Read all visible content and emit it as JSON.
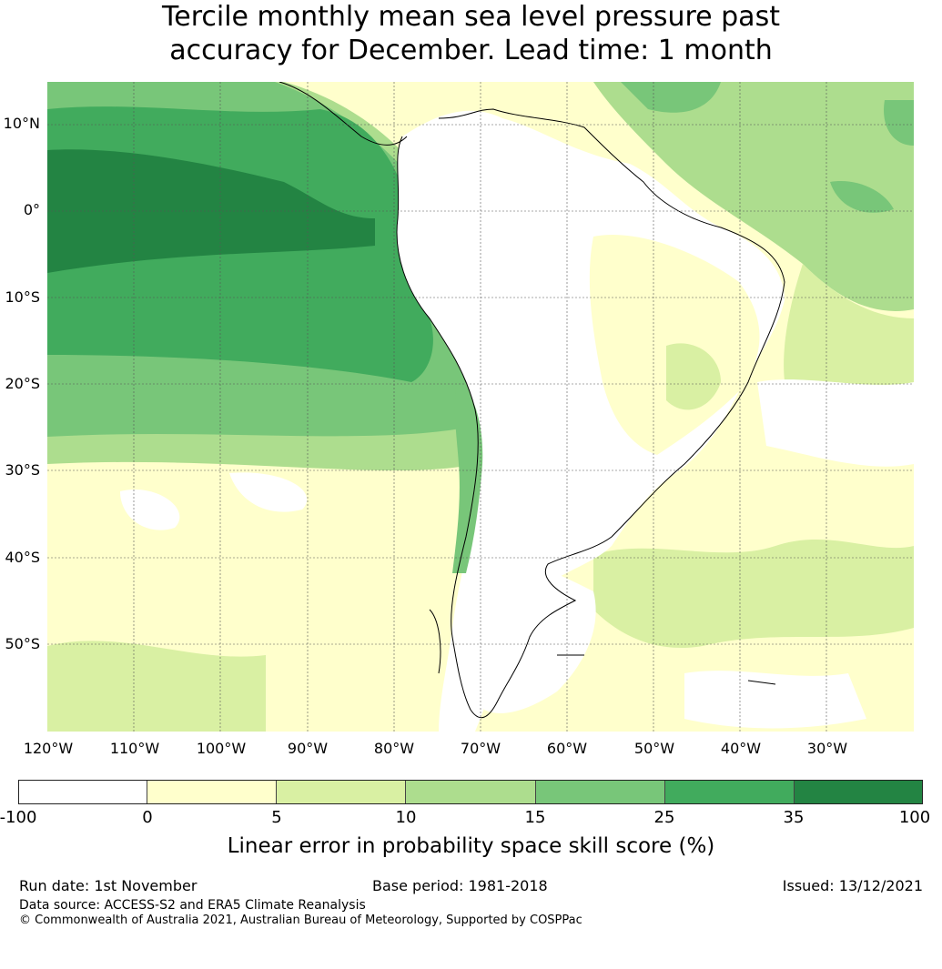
{
  "title": {
    "line1": "Tercile monthly mean sea level pressure past",
    "line2": "accuracy for December. Lead time: 1 month"
  },
  "map": {
    "lat_labels": [
      "10°N",
      "0°",
      "10°S",
      "20°S",
      "30°S",
      "40°S",
      "50°S"
    ],
    "lon_labels": [
      "120°W",
      "110°W",
      "100°W",
      "90°W",
      "80°W",
      "70°W",
      "60°W",
      "50°W",
      "40°W",
      "30°W"
    ],
    "colors": {
      "ocean_base": "#d9f0a3",
      "land_low": "#ffffff",
      "c_neg": "#ffffff",
      "c_0_5": "#ffffcc",
      "c_5_10": "#d9f0a3",
      "c_10_15": "#addd8e",
      "c_15_25": "#78c679",
      "c_25_35": "#41ab5d",
      "c_35_100": "#238443"
    }
  },
  "colorbar": {
    "ticks": [
      "-100",
      "0",
      "5",
      "10",
      "15",
      "25",
      "35",
      "100"
    ],
    "colors": [
      "#ffffff",
      "#ffffcc",
      "#d9f0a3",
      "#addd8e",
      "#78c679",
      "#41ab5d",
      "#238443"
    ],
    "label": "Linear error in probability space skill score (%)"
  },
  "footer": {
    "run_date": "Run date: 1st November",
    "base_period": "Base period: 1981-2018",
    "issued": "Issued: 13/12/2021",
    "data_source": "Data source: ACCESS-S2 and ERA5 Climate Reanalysis",
    "copyright": "© Commonwealth of Australia 2021, Australian Bureau of Meteorology, Supported by COSPPac"
  }
}
